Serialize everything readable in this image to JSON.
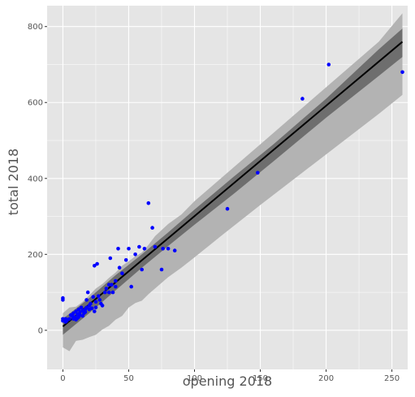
{
  "chart_data": {
    "type": "scatter",
    "xlabel": "opening 2018",
    "ylabel": "total 2018",
    "xlim": [
      -12,
      262
    ],
    "ylim": [
      -103,
      855
    ],
    "x_ticks": [
      0,
      50,
      100,
      150,
      200,
      250
    ],
    "y_ticks": [
      0,
      200,
      400,
      600,
      800
    ],
    "grid": true,
    "colors": {
      "panel": "#e5e5e5",
      "grid": "#ffffff",
      "points": "#0000ff",
      "fit_line": "#000000",
      "inner_band": "#6e6e6e",
      "outer_band": "#b3b3b3"
    },
    "fit_line": {
      "x": [
        0,
        258
      ],
      "y": [
        10,
        760
      ]
    },
    "outer_band": {
      "x": [
        0,
        5,
        10,
        15,
        20,
        25,
        30,
        35,
        40,
        45,
        50,
        55,
        60,
        65,
        70,
        80,
        90,
        100,
        120,
        150,
        180,
        210,
        240,
        258
      ],
      "lower": [
        -45,
        -55,
        -28,
        -25,
        -18,
        -12,
        2,
        12,
        28,
        38,
        60,
        72,
        78,
        95,
        110,
        140,
        165,
        192,
        248,
        330,
        410,
        490,
        570,
        620
      ],
      "upper": [
        45,
        60,
        62,
        75,
        92,
        110,
        122,
        138,
        152,
        170,
        182,
        195,
        205,
        225,
        248,
        280,
        305,
        340,
        400,
        490,
        580,
        670,
        760,
        835
      ]
    },
    "inner_band": {
      "x": [
        0,
        20,
        40,
        60,
        80,
        100,
        130,
        160,
        200,
        240,
        258
      ],
      "lower": [
        -12,
        45,
        105,
        165,
        222,
        278,
        360,
        445,
        560,
        670,
        720
      ],
      "upper": [
        30,
        85,
        145,
        200,
        258,
        318,
        405,
        490,
        610,
        740,
        795
      ]
    },
    "points": {
      "x": [
        0,
        0,
        0,
        0,
        1,
        1,
        2,
        2,
        3,
        3,
        5,
        6,
        7,
        8,
        8,
        9,
        10,
        10,
        11,
        11,
        12,
        12,
        13,
        13,
        14,
        15,
        15,
        16,
        17,
        17,
        18,
        18,
        19,
        20,
        20,
        21,
        22,
        23,
        24,
        24,
        25,
        25,
        26,
        27,
        28,
        29,
        30,
        32,
        33,
        35,
        35,
        36,
        37,
        38,
        40,
        40,
        42,
        43,
        45,
        48,
        50,
        52,
        55,
        58,
        60,
        62,
        65,
        68,
        70,
        75,
        76,
        80,
        85,
        125,
        148,
        182,
        202,
        258
      ],
      "y": [
        30,
        25,
        85,
        80,
        28,
        25,
        30,
        22,
        25,
        28,
        30,
        40,
        38,
        45,
        30,
        35,
        50,
        28,
        42,
        32,
        55,
        35,
        48,
        40,
        60,
        38,
        52,
        45,
        55,
        48,
        80,
        60,
        100,
        55,
        65,
        70,
        58,
        88,
        50,
        170,
        60,
        75,
        175,
        90,
        80,
        70,
        65,
        100,
        110,
        100,
        120,
        190,
        120,
        100,
        115,
        130,
        215,
        165,
        150,
        185,
        215,
        115,
        200,
        220,
        160,
        215,
        335,
        270,
        220,
        160,
        215,
        215,
        210,
        320,
        415,
        610,
        700,
        680
      ]
    }
  }
}
